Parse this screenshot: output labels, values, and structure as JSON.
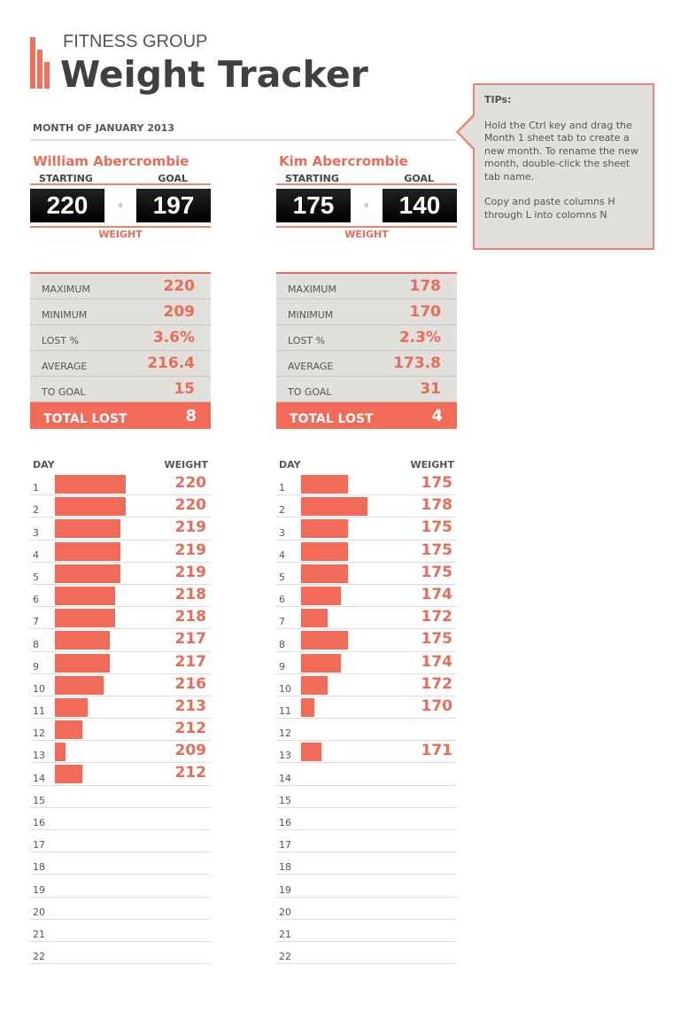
{
  "header": {
    "group": "FITNESS GROUP",
    "title": "Weight Tracker",
    "month": "MONTH OF JANUARY 2013"
  },
  "colors": {
    "accent": "#f26a58",
    "panel": "#e2e0dd",
    "text": "#404040"
  },
  "tips": {
    "title": "TIPs:",
    "p1": "Hold  the Ctrl key and drag the Month 1 sheet tab to create a new month.  To rename  the new month, double-click the sheet tab name.",
    "p2": "Copy and paste columns  H through L into colomns N"
  },
  "labels": {
    "starting": "STARTING",
    "goal": "GOAL",
    "weight": "WEIGHT",
    "maximum": "MAXIMUM",
    "minimum": "MINIMUM",
    "lost_pct": "LOST %",
    "average": "AVERAGE",
    "to_goal": "TO GOAL",
    "total_lost": "TOTAL LOST",
    "day": "DAY",
    "weight_col": "WEIGHT"
  },
  "people": [
    {
      "name": "William Abercrombie",
      "starting": "220",
      "goal": "197",
      "maximum": "220",
      "minimum": "209",
      "lost_pct": "3.6%",
      "average": "216.4",
      "to_goal": "15",
      "total_lost": "8",
      "log": [
        220,
        220,
        219,
        219,
        219,
        218,
        218,
        217,
        217,
        216,
        213,
        212,
        209,
        212,
        null,
        null,
        null,
        null,
        null,
        null,
        null,
        null
      ]
    },
    {
      "name": "Kim Abercrombie",
      "starting": "175",
      "goal": "140",
      "maximum": "178",
      "minimum": "170",
      "lost_pct": "2.3%",
      "average": "173.8",
      "to_goal": "31",
      "total_lost": "4",
      "log": [
        175,
        178,
        175,
        175,
        175,
        174,
        172,
        175,
        174,
        172,
        170,
        null,
        171,
        null,
        null,
        null,
        null,
        null,
        null,
        null,
        null,
        null
      ]
    }
  ]
}
